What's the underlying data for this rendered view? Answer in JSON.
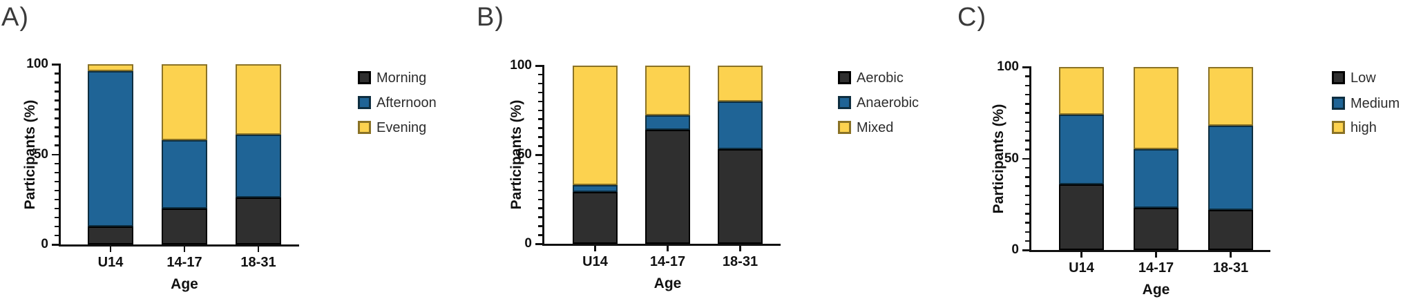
{
  "panels": [
    {
      "letter": "A)"
    },
    {
      "letter": "B)"
    },
    {
      "letter": "C)"
    }
  ],
  "chart_data": [
    {
      "type": "bar",
      "stacked": true,
      "title": "",
      "categories": [
        "U14",
        "14-17",
        "18-31"
      ],
      "series": [
        {
          "name": "Morning",
          "values": [
            10,
            20,
            26
          ],
          "fill": "#2f2f2f",
          "stroke": "#000000"
        },
        {
          "name": "Afternoon",
          "values": [
            86,
            38,
            35
          ],
          "fill": "#1f6496",
          "stroke": "#0e2e40"
        },
        {
          "name": "Evening",
          "values": [
            4,
            42,
            39
          ],
          "fill": "#fcd24f",
          "stroke": "#8a7226"
        }
      ],
      "xlabel": "Age",
      "ylabel": "Participants (%)",
      "ylim": [
        0,
        100
      ],
      "yticks": [
        0,
        50,
        100
      ],
      "minor_tick_step": 5,
      "grid": false,
      "legend_position": "right"
    },
    {
      "type": "bar",
      "stacked": true,
      "title": "",
      "categories": [
        "U14",
        "14-17",
        "18-31"
      ],
      "series": [
        {
          "name": "Aerobic",
          "values": [
            29,
            64,
            53
          ],
          "fill": "#2f2f2f",
          "stroke": "#000000"
        },
        {
          "name": "Anaerobic",
          "values": [
            4,
            8,
            27
          ],
          "fill": "#1f6496",
          "stroke": "#0e2e40"
        },
        {
          "name": "Mixed",
          "values": [
            67,
            28,
            20
          ],
          "fill": "#fcd24f",
          "stroke": "#8a7226"
        }
      ],
      "xlabel": "Age",
      "ylabel": "Participants (%)",
      "ylim": [
        0,
        100
      ],
      "yticks": [
        0,
        50,
        100
      ],
      "minor_tick_step": 5,
      "grid": false,
      "legend_position": "right"
    },
    {
      "type": "bar",
      "stacked": true,
      "title": "",
      "categories": [
        "U14",
        "14-17",
        "18-31"
      ],
      "series": [
        {
          "name": "Low",
          "values": [
            36,
            23,
            22
          ],
          "fill": "#2f2f2f",
          "stroke": "#000000"
        },
        {
          "name": "Medium",
          "values": [
            38,
            32,
            46
          ],
          "fill": "#1f6496",
          "stroke": "#0e2e40"
        },
        {
          "name": "high",
          "values": [
            26,
            45,
            32
          ],
          "fill": "#fcd24f",
          "stroke": "#8a7226"
        }
      ],
      "xlabel": "Age",
      "ylabel": "Participants (%)",
      "ylim": [
        0,
        100
      ],
      "yticks": [
        0,
        50,
        100
      ],
      "minor_tick_step": 5,
      "grid": false,
      "legend_position": "right"
    }
  ]
}
